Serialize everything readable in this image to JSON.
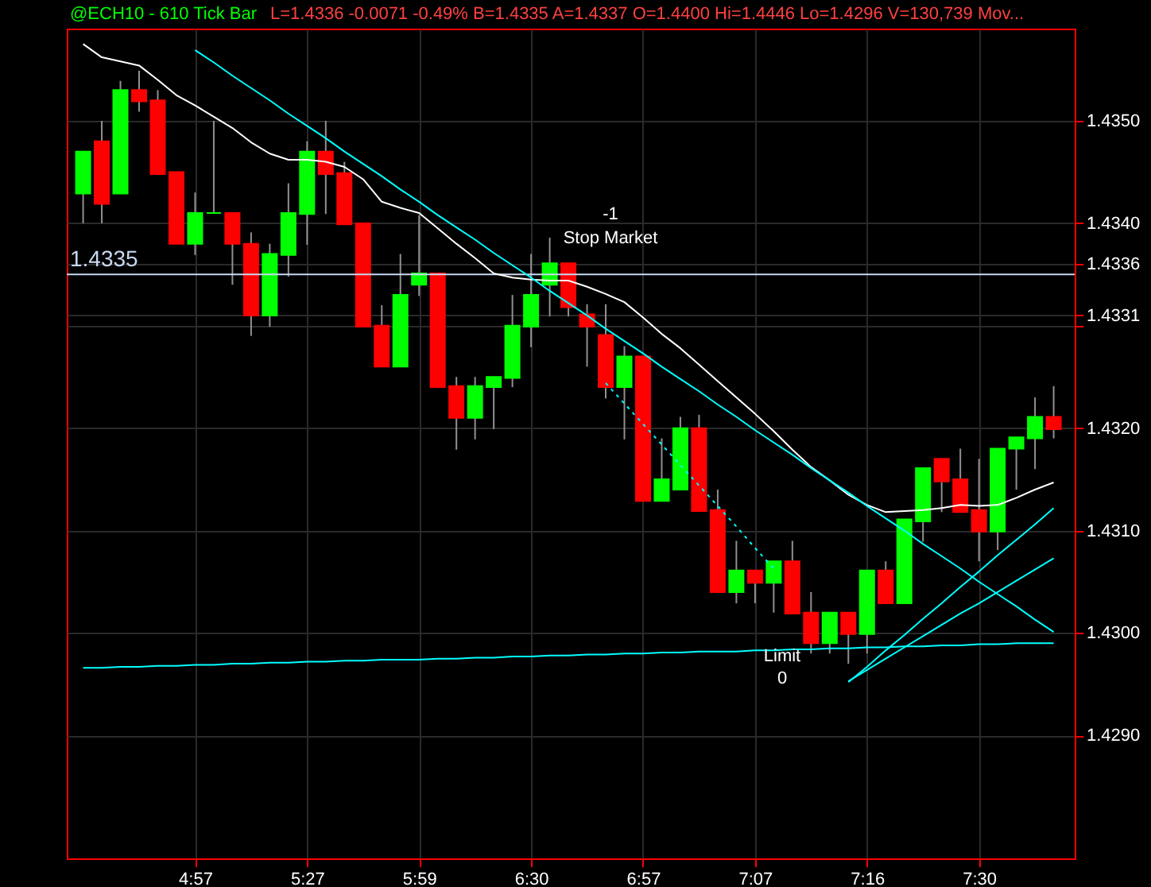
{
  "chart_data": {
    "type": "candlestick",
    "title": "@ECH10 - 610 Tick Bar",
    "subtitle": "L=1.4336 -0.0071 -0.49% B=1.4335 A=1.4337 O=1.4400 Hi=1.4446 Lo=1.4296 V=130,739 Mov...",
    "categories": [
      null,
      null,
      null,
      null,
      null,
      null,
      "4:57",
      null,
      null,
      null,
      null,
      null,
      "5:27",
      null,
      null,
      null,
      null,
      null,
      "5:59",
      null,
      null,
      null,
      null,
      null,
      "6:30",
      null,
      null,
      null,
      null,
      null,
      "6:57",
      null,
      null,
      null,
      null,
      null,
      "7:07",
      null,
      null,
      null,
      null,
      null,
      "7:16",
      null,
      null,
      null,
      null,
      null,
      "7:30",
      null,
      null,
      null,
      null
    ],
    "ohlc": [
      [
        1.43429,
        1.4347,
        1.434,
        1.4347
      ],
      [
        1.4348,
        1.435,
        1.434,
        1.43419
      ],
      [
        1.43429,
        1.43539,
        1.43429,
        1.4353
      ],
      [
        1.4353,
        1.43549,
        1.43509,
        1.43519
      ],
      [
        1.4352,
        1.4353,
        1.43448,
        1.43448
      ],
      [
        1.4345,
        1.4345,
        1.4338,
        1.4338
      ],
      [
        1.4338,
        1.4343,
        1.43369,
        1.4341
      ],
      [
        1.4341,
        1.435,
        1.4341,
        1.4341
      ],
      [
        1.4341,
        1.4341,
        1.4334,
        1.4338
      ],
      [
        1.4338,
        1.43391,
        1.4329,
        1.4331
      ],
      [
        1.4331,
        1.4338,
        1.43299,
        1.4337
      ],
      [
        1.43369,
        1.43439,
        1.43348,
        1.4341
      ],
      [
        1.43409,
        1.4348,
        1.43379,
        1.4347
      ],
      [
        1.4347,
        1.435,
        1.43409,
        1.43448
      ],
      [
        1.43449,
        1.4346,
        1.43399,
        1.43399
      ],
      [
        1.434,
        1.434,
        1.43299,
        1.43299
      ],
      [
        1.433,
        1.4332,
        1.4326,
        1.4326
      ],
      [
        1.4326,
        1.4337,
        1.4326,
        1.4333
      ],
      [
        1.4334,
        1.43408,
        1.43329,
        1.43351
      ],
      [
        1.43351,
        1.43351,
        1.4324,
        1.4324
      ],
      [
        1.43241,
        1.4325,
        1.43179,
        1.4321
      ],
      [
        1.4321,
        1.4325,
        1.43189,
        1.43241
      ],
      [
        1.4324,
        1.4325,
        1.43199,
        1.4325
      ],
      [
        1.43249,
        1.4333,
        1.4324,
        1.433
      ],
      [
        1.43299,
        1.4337,
        1.43279,
        1.4333
      ],
      [
        1.4334,
        1.43386,
        1.43309,
        1.43361
      ],
      [
        1.43361,
        1.43361,
        1.43309,
        1.43318
      ],
      [
        1.43311,
        1.43321,
        1.4326,
        1.43299
      ],
      [
        1.43291,
        1.43321,
        1.43229,
        1.4324
      ],
      [
        1.4324,
        1.4328,
        1.43189,
        1.4327
      ],
      [
        1.4327,
        1.4327,
        1.43129,
        1.43129
      ],
      [
        1.43129,
        1.4319,
        1.43129,
        1.4315
      ],
      [
        1.4314,
        1.43211,
        1.4314,
        1.432
      ],
      [
        1.432,
        1.43213,
        1.43119,
        1.43119
      ],
      [
        1.4312,
        1.4314,
        1.4304,
        1.4304
      ],
      [
        1.4304,
        1.4309,
        1.43029,
        1.43061
      ],
      [
        1.43061,
        1.43061,
        1.43029,
        1.43049
      ],
      [
        1.43049,
        1.4307,
        1.4302,
        1.4307
      ],
      [
        1.4307,
        1.4309,
        1.43019,
        1.43019
      ],
      [
        1.4302,
        1.4304,
        1.4298,
        1.4299
      ],
      [
        1.4299,
        1.4302,
        1.4298,
        1.4302
      ],
      [
        1.4302,
        1.4302,
        1.4297,
        1.42999
      ],
      [
        1.42999,
        1.43061,
        1.4298,
        1.43061
      ],
      [
        1.43061,
        1.4307,
        1.43029,
        1.43029
      ],
      [
        1.43029,
        1.43111,
        1.43029,
        1.43111
      ],
      [
        1.43109,
        1.43161,
        1.43089,
        1.43161
      ],
      [
        1.4317,
        1.4317,
        1.43118,
        1.43148
      ],
      [
        1.4315,
        1.4318,
        1.43118,
        1.43118
      ],
      [
        1.4312,
        1.4317,
        1.4307,
        1.43099
      ],
      [
        1.43099,
        1.4318,
        1.43081,
        1.4318
      ],
      [
        1.4318,
        1.43191,
        1.4314,
        1.43191
      ],
      [
        1.4319,
        1.4323,
        1.4316,
        1.43211
      ],
      [
        1.43211,
        1.43241,
        1.4319,
        1.43199
      ]
    ],
    "colors": [
      "#00ff00",
      "#ff0000",
      "#00ff00",
      "#ff0000",
      "#ff0000",
      "#ff0000",
      "#00ff00",
      "#00ff00",
      "#ff0000",
      "#ff0000",
      "#00ff00",
      "#00ff00",
      "#00ff00",
      "#ff0000",
      "#ff0000",
      "#ff0000",
      "#ff0000",
      "#00ff00",
      "#00ff00",
      "#ff0000",
      "#ff0000",
      "#00ff00",
      "#00ff00",
      "#00ff00",
      "#00ff00",
      "#00ff00",
      "#ff0000",
      "#ff0000",
      "#ff0000",
      "#00ff00",
      "#ff0000",
      "#00ff00",
      "#00ff00",
      "#ff0000",
      "#ff0000",
      "#00ff00",
      "#ff0000",
      "#00ff00",
      "#ff0000",
      "#ff0000",
      "#00ff00",
      "#ff0000",
      "#00ff00",
      "#ff0000",
      "#00ff00",
      "#00ff00",
      "#ff0000",
      "#ff0000",
      "#ff0000",
      "#00ff00",
      "#00ff00",
      "#00ff00",
      "#ff0000"
    ],
    "series": [
      {
        "type": "line",
        "color": "#ffffff",
        "values": [
          1.43575,
          1.43562,
          1.43558,
          1.43554,
          1.4354,
          1.43525,
          1.43515,
          1.43504,
          1.43493,
          1.43479,
          1.43468,
          1.43462,
          1.43462,
          1.4346,
          1.43455,
          1.43443,
          1.43421,
          1.43415,
          1.4341,
          1.43395,
          1.4338,
          1.43366,
          1.43351,
          1.43347,
          1.43345,
          1.43344,
          1.43344,
          1.43338,
          1.43331,
          1.43323,
          1.43308,
          1.43292,
          1.43278,
          1.43262,
          1.43246,
          1.4323,
          1.43214,
          1.43197,
          1.43179,
          1.43162,
          1.43149,
          1.43135,
          1.43125,
          1.43118,
          1.43119,
          1.4312,
          1.43122,
          1.43125,
          1.43124,
          1.43125,
          1.43132,
          1.4314,
          1.43147
        ]
      },
      {
        "type": "line",
        "color": "#00ffff",
        "values": [
          null,
          null,
          null,
          null,
          null,
          null,
          1.43569,
          1.43557,
          1.43544,
          1.43532,
          1.4352,
          1.43507,
          1.43495,
          1.43483,
          1.4347,
          1.43458,
          1.43446,
          1.43433,
          1.43421,
          1.43408,
          1.43396,
          1.43384,
          1.43371,
          1.43359,
          1.43347,
          1.43334,
          1.43322,
          1.4331,
          1.43297,
          1.43285,
          1.43273,
          1.4326,
          1.43248,
          1.43236,
          1.43223,
          1.43211,
          1.43198,
          1.43186,
          1.43174,
          1.43161,
          1.43149,
          1.43137,
          1.43124,
          1.43112,
          1.431,
          1.43087,
          1.43075,
          1.43063,
          1.4305,
          1.43038,
          1.43026,
          1.43013,
          1.43001
        ]
      },
      {
        "type": "line",
        "color": "#00ffff",
        "values": [
          1.42966,
          1.42966,
          1.42967,
          1.42967,
          1.42968,
          1.42968,
          1.42969,
          1.42969,
          1.4297,
          1.4297,
          1.42971,
          1.42971,
          1.42972,
          1.42972,
          1.42973,
          1.42973,
          1.42974,
          1.42974,
          1.42974,
          1.42975,
          1.42975,
          1.42976,
          1.42976,
          1.42977,
          1.42977,
          1.42978,
          1.42978,
          1.42979,
          1.42979,
          1.4298,
          1.4298,
          1.42981,
          1.42981,
          1.42982,
          1.42982,
          1.42982,
          1.42983,
          1.42983,
          1.42984,
          1.42984,
          1.42985,
          1.42985,
          1.42986,
          1.42986,
          1.42987,
          1.42987,
          1.42988,
          1.42988,
          1.42989,
          1.42989,
          1.4299,
          1.4299,
          1.4299
        ]
      },
      {
        "type": "line",
        "color": "#00ffff",
        "values": [
          null,
          null,
          null,
          null,
          null,
          null,
          null,
          null,
          null,
          null,
          null,
          null,
          null,
          null,
          null,
          null,
          null,
          null,
          null,
          null,
          null,
          null,
          null,
          null,
          null,
          null,
          null,
          null,
          null,
          null,
          null,
          null,
          null,
          null,
          null,
          null,
          null,
          null,
          null,
          null,
          null,
          1.42952,
          1.42967,
          1.42983,
          1.42998,
          1.43014,
          1.43029,
          1.43045,
          1.4306,
          1.43076,
          1.43091,
          1.43106,
          1.43122
        ]
      },
      {
        "type": "line",
        "color": "#00ffff",
        "values": [
          null,
          null,
          null,
          null,
          null,
          null,
          null,
          null,
          null,
          null,
          null,
          null,
          null,
          null,
          null,
          null,
          null,
          null,
          null,
          null,
          null,
          null,
          null,
          null,
          null,
          null,
          null,
          null,
          null,
          null,
          null,
          null,
          null,
          null,
          null,
          null,
          null,
          null,
          null,
          null,
          null,
          1.42953,
          1.42964,
          1.42975,
          1.42986,
          1.42997,
          1.43008,
          1.43019,
          1.43029,
          1.4304,
          1.43051,
          1.43062,
          1.43073
        ]
      },
      {
        "type": "line",
        "color": "#00ffff",
        "line_style": "dotted",
        "values": [
          null,
          null,
          null,
          null,
          null,
          null,
          null,
          null,
          null,
          null,
          null,
          null,
          null,
          null,
          null,
          null,
          null,
          null,
          null,
          null,
          null,
          null,
          null,
          null,
          null,
          null,
          null,
          null,
          1.43244,
          1.43224,
          1.43204,
          1.43184,
          1.43164,
          1.43144,
          1.43124,
          1.43104,
          1.43083,
          1.43063,
          null,
          null,
          null,
          null,
          null,
          null,
          null,
          null,
          null,
          null,
          null,
          null,
          null,
          null,
          null
        ]
      }
    ],
    "ylim": [
      1.4278,
      1.4359
    ],
    "yticks": [
      {
        "value": 1.429,
        "label": "1.4290"
      },
      {
        "value": 1.43,
        "label": "1.4300"
      },
      {
        "value": 1.431,
        "label": "1.4310"
      },
      {
        "value": 1.432,
        "label": "1.4320"
      },
      {
        "value": 1.433,
        "label": null
      },
      {
        "value": 1.4331,
        "label": "1.4331"
      },
      {
        "value": 1.4336,
        "label": "1.4336"
      },
      {
        "value": 1.434,
        "label": "1.4340"
      },
      {
        "value": 1.435,
        "label": "1.4350"
      }
    ],
    "grid": true,
    "ref_lines": [
      {
        "axis": "y",
        "value": 1.4335,
        "label": "1.4335",
        "color": "#c8d8f0"
      }
    ],
    "annotations": [
      "-1",
      "Stop Market",
      "Limit",
      "0"
    ]
  }
}
